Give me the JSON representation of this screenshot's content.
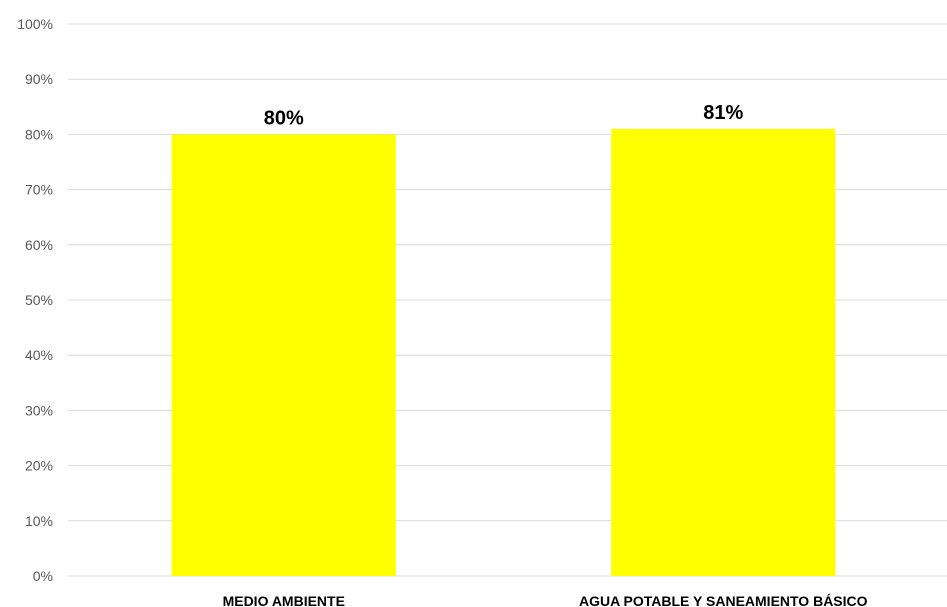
{
  "chart_data": {
    "type": "bar",
    "categories": [
      "MEDIO AMBIENTE",
      "AGUA POTABLE Y SANEAMIENTO BÁSICO"
    ],
    "values": [
      80,
      81
    ],
    "data_labels": [
      "80%",
      "81%"
    ],
    "title": "",
    "xlabel": "",
    "ylabel": "",
    "ylim": [
      0,
      100
    ],
    "y_ticks": [
      0,
      10,
      20,
      30,
      40,
      50,
      60,
      70,
      80,
      90,
      100
    ],
    "y_tick_labels": [
      "0%",
      "10%",
      "20%",
      "30%",
      "40%",
      "50%",
      "60%",
      "70%",
      "80%",
      "90%",
      "100%"
    ],
    "grid": true,
    "legend": "none",
    "bar_color": "#FFFF00",
    "grid_color": "#D9D9D9"
  }
}
